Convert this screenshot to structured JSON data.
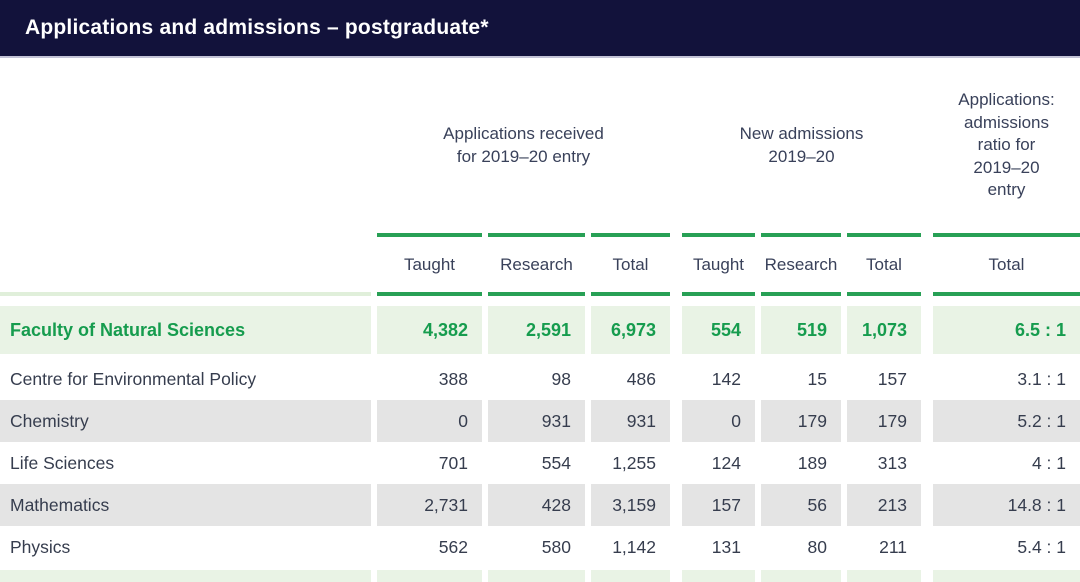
{
  "header": {
    "title": "Applications and admissions – postgraduate*"
  },
  "colors": {
    "navy_bar": "#12123b",
    "title_text": "#ffffff",
    "body_text": "#363d4e",
    "header_text": "#39415a",
    "accent_green_text": "#169c4e",
    "accent_green_line": "#28a055",
    "highlight_row_bg": "#e9f3e5",
    "striped_row_bg": "#e4e4e4"
  },
  "table": {
    "group_headers": [
      {
        "label": "Applications received\nfor 2019–20 entry"
      },
      {
        "label": "New admissions\n2019–20"
      },
      {
        "label": "Applications:\nadmissions\nratio for\n2019–20\nentry"
      }
    ],
    "sub_headers": [
      "Taught",
      "Research",
      "Total",
      "Taught",
      "Research",
      "Total",
      "Total"
    ],
    "rows": [
      {
        "name": "Faculty of Natural Sciences",
        "highlight": true,
        "values": [
          "4,382",
          "2,591",
          "6,973",
          "554",
          "519",
          "1,073",
          "6.5 : 1"
        ]
      },
      {
        "name": "Centre for Environmental Policy",
        "highlight": false,
        "values": [
          "388",
          "98",
          "486",
          "142",
          "15",
          "157",
          "3.1 : 1"
        ]
      },
      {
        "name": "Chemistry",
        "highlight": false,
        "values": [
          "0",
          "931",
          "931",
          "0",
          "179",
          "179",
          "5.2 : 1"
        ]
      },
      {
        "name": "Life Sciences",
        "highlight": false,
        "values": [
          "701",
          "554",
          "1,255",
          "124",
          "189",
          "313",
          "4 : 1"
        ]
      },
      {
        "name": "Mathematics",
        "highlight": false,
        "values": [
          "2,731",
          "428",
          "3,159",
          "157",
          "56",
          "213",
          "14.8 : 1"
        ]
      },
      {
        "name": "Physics",
        "highlight": false,
        "values": [
          "562",
          "580",
          "1,142",
          "131",
          "80",
          "211",
          "5.4 : 1"
        ]
      }
    ]
  }
}
